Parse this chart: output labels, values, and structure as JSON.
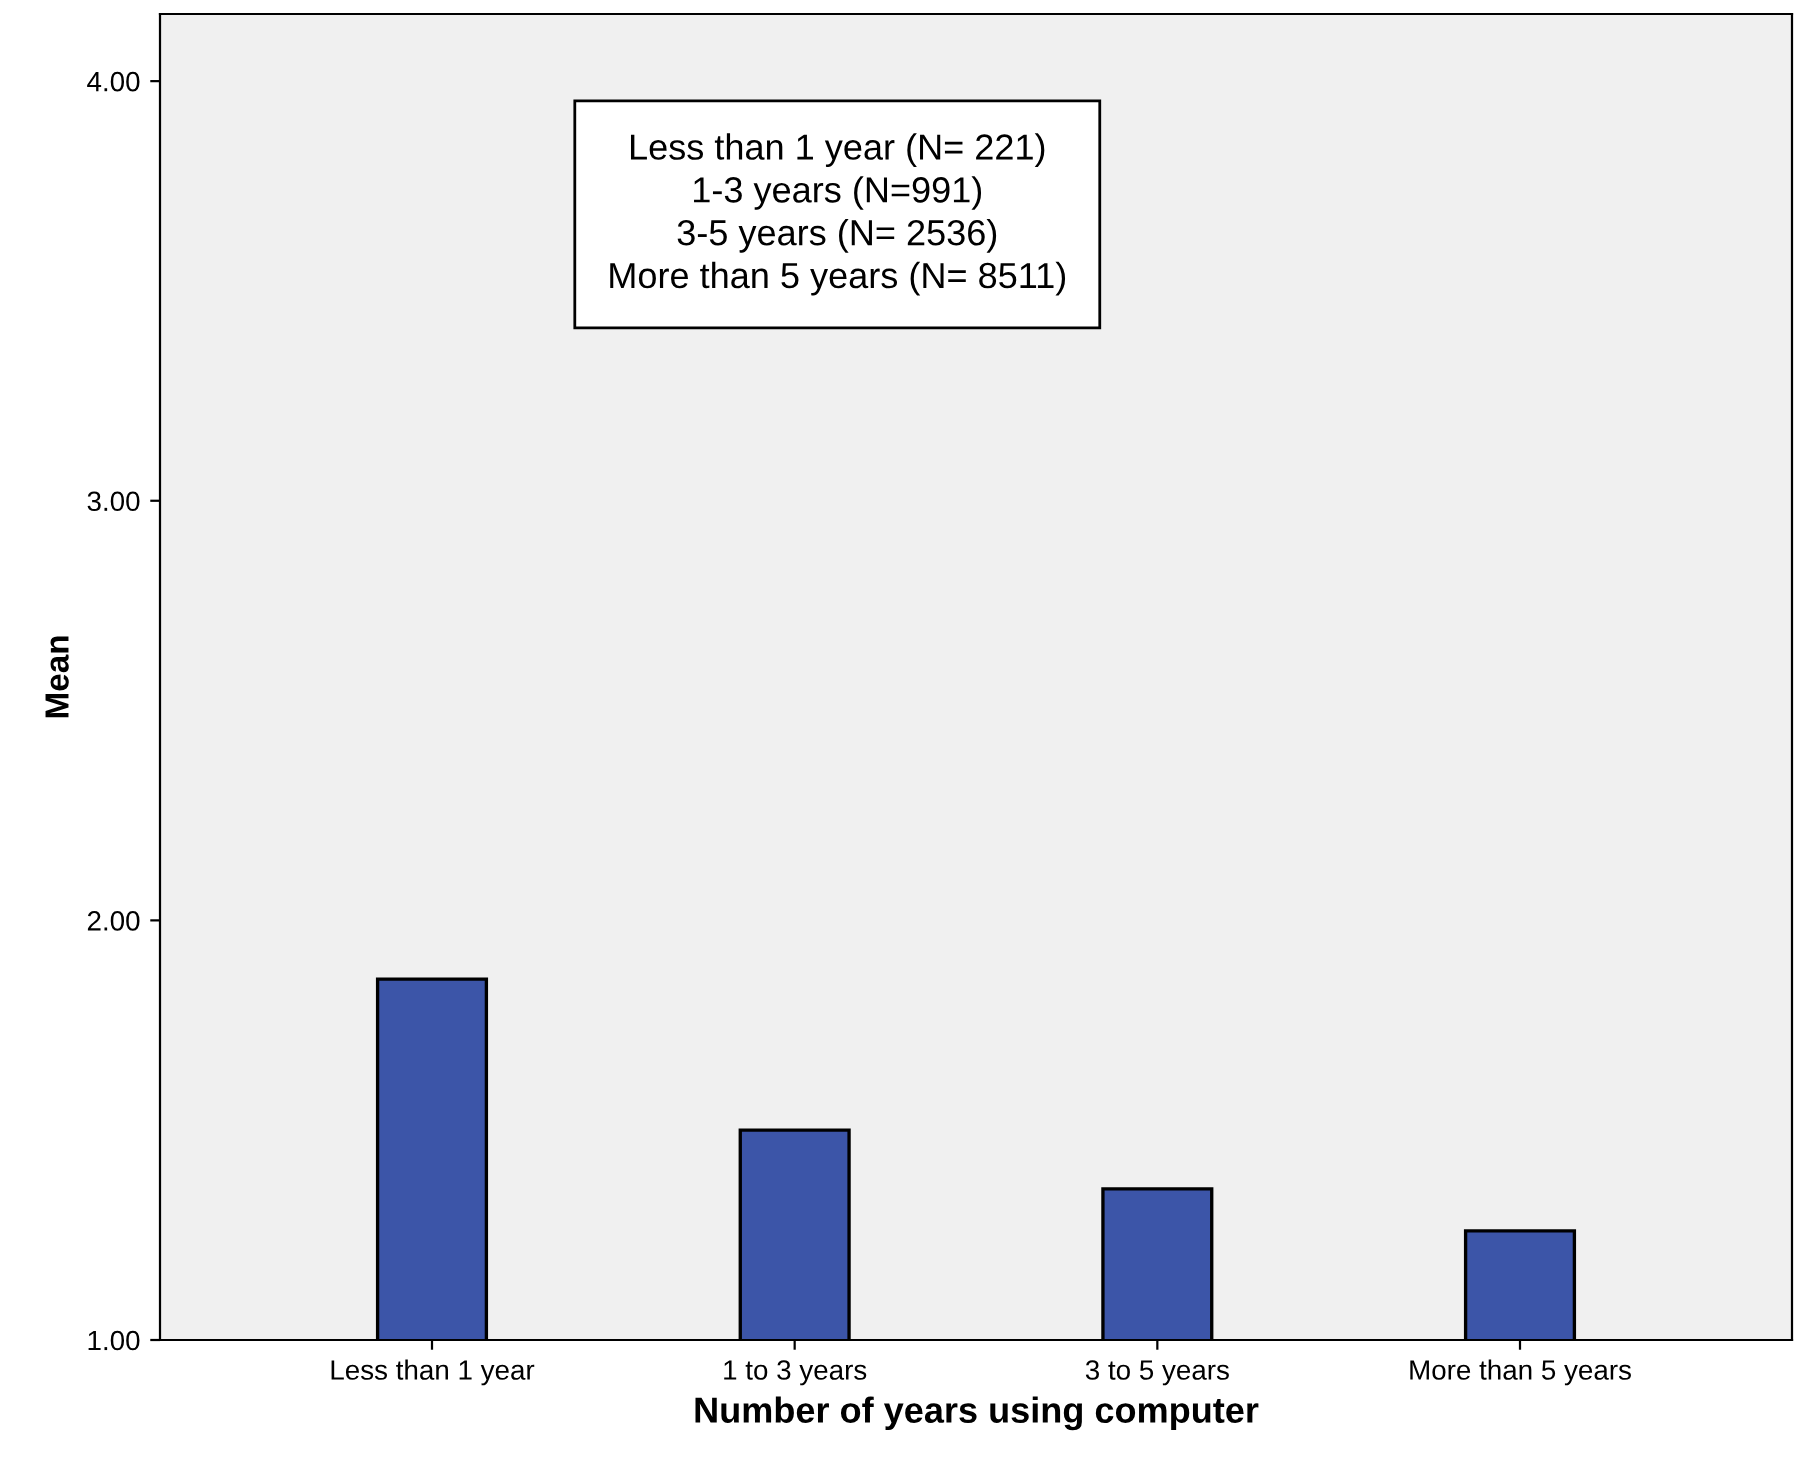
{
  "chart_data": {
    "type": "bar",
    "xlabel": "Number of years using computer",
    "ylabel": "Mean",
    "categories": [
      "Less than 1 year",
      "1 to 3 years",
      "3 to 5 years",
      "More than 5 years"
    ],
    "values": [
      1.86,
      1.5,
      1.36,
      1.26
    ],
    "color": "#3c55a8",
    "ylim": [
      1.0,
      4.16
    ],
    "yticks": [
      {
        "value": 1,
        "label": "1.00"
      },
      {
        "value": 2,
        "label": "2.00"
      },
      {
        "value": 3,
        "label": "3.00"
      },
      {
        "value": 4,
        "label": "4.00"
      }
    ],
    "grid": false,
    "annotations": [
      "Less than 1 year (N= 221)\n1-3 years (N=991)\n3-5 years (N= 2536)\nMore than 5 years (N= 8511)"
    ]
  }
}
